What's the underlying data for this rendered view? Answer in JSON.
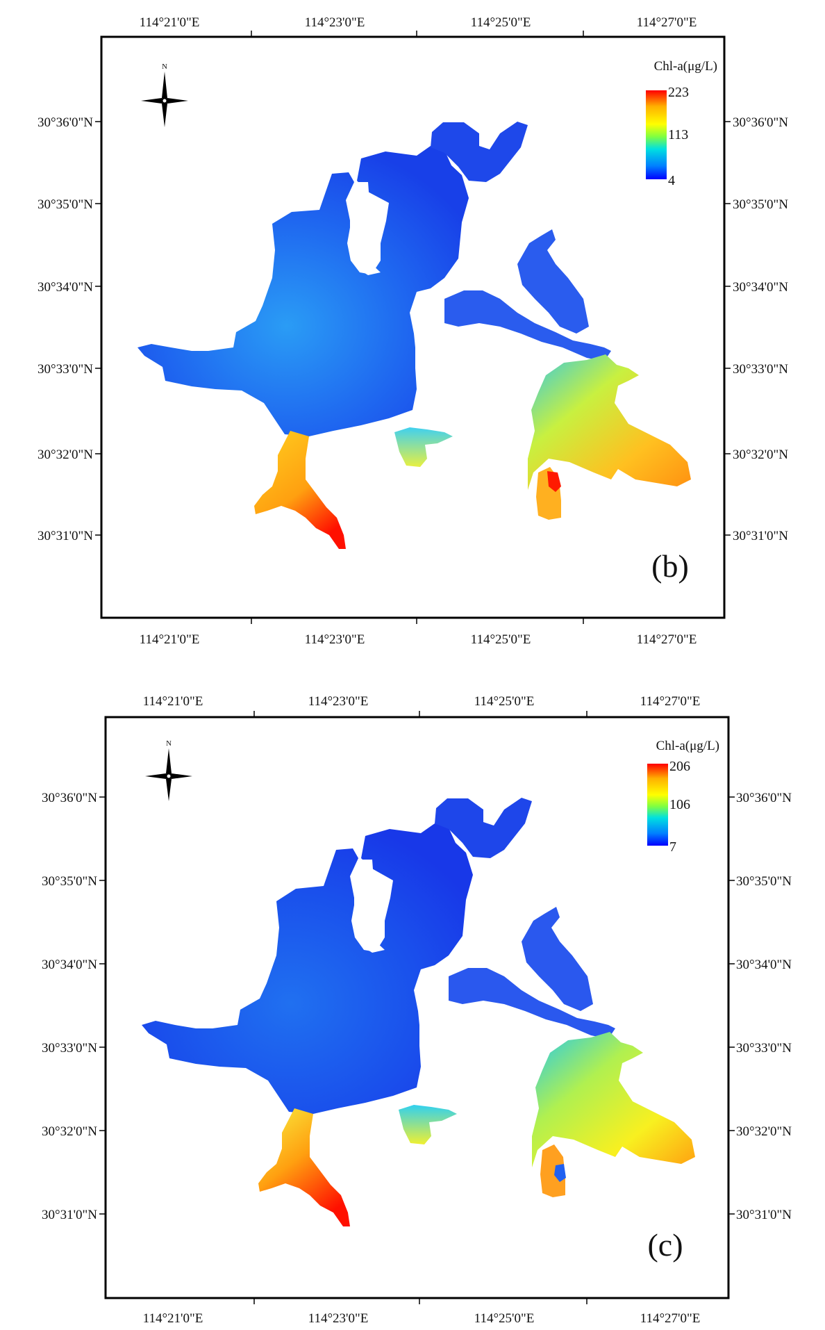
{
  "panels": [
    {
      "id": "b",
      "panel_label": "(b)",
      "legend": {
        "title": "Chl-a(μg/L)",
        "max_label": "223",
        "mid_label": "113",
        "min_label": "4",
        "colors": [
          "#ff0000",
          "#ffb000",
          "#ffff00",
          "#80ff40",
          "#00e0e0",
          "#0080ff",
          "#0000ff"
        ]
      },
      "lon_labels": [
        "114°21'0\"E",
        "114°23'0\"E",
        "114°25'0\"E",
        "114°27'0\"E"
      ],
      "lat_labels_left": [
        "30°36'0\"N",
        "30°35'0\"N",
        "30°34'0\"N",
        "30°33'0\"N",
        "30°32'0\"N",
        "30°31'0\"N"
      ],
      "lat_labels_right": [
        "30°36'0\"N",
        "30°35'0\"N",
        "30°34'0\"N",
        "30°33'0\"N",
        "30°32'0\"N",
        "30°31'0\"N"
      ],
      "north_label": "N"
    },
    {
      "id": "c",
      "panel_label": "(c)",
      "legend": {
        "title": "Chl-a(μg/L)",
        "max_label": "206",
        "mid_label": "106",
        "min_label": "7",
        "colors": [
          "#ff0000",
          "#ffb000",
          "#ffff00",
          "#80ff40",
          "#00e0e0",
          "#0080ff",
          "#0000ff"
        ]
      },
      "lon_labels": [
        "114°21'0\"E",
        "114°23'0\"E",
        "114°25'0\"E",
        "114°27'0\"E"
      ],
      "lat_labels_left": [
        "30°36'0\"N",
        "30°35'0\"N",
        "30°34'0\"N",
        "30°33'0\"N",
        "30°32'0\"N",
        "30°31'0\"N"
      ],
      "lat_labels_right": [
        "30°36'0\"N",
        "30°35'0\"N",
        "30°34'0\"N",
        "30°33'0\"N",
        "30°32'0\"N",
        "30°31'0\"N"
      ],
      "north_label": "N"
    }
  ]
}
